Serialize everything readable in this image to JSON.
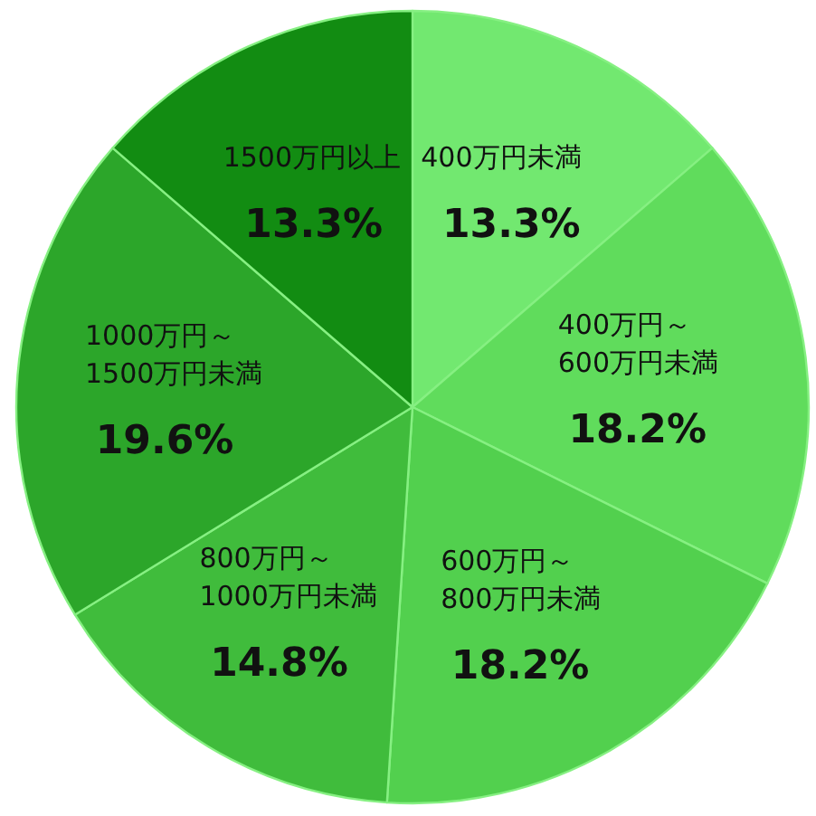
{
  "chart_data": {
    "type": "pie",
    "categories": [
      "400万円未満",
      "400万円～\n600万円未満",
      "600万円～\n800万円未満",
      "800万円～\n1000万円未満",
      "1000万円～\n1500万円未満",
      "1500万円以上"
    ],
    "values": [
      13.3,
      18.2,
      18.2,
      14.8,
      19.6,
      13.3
    ],
    "value_labels": [
      "13.3%",
      "18.2%",
      "18.2%",
      "14.8%",
      "19.6%",
      "13.3%"
    ],
    "colors": [
      "#72e870",
      "#60dc5c",
      "#52d04e",
      "#40bc3c",
      "#2ca62a",
      "#128c12"
    ]
  }
}
